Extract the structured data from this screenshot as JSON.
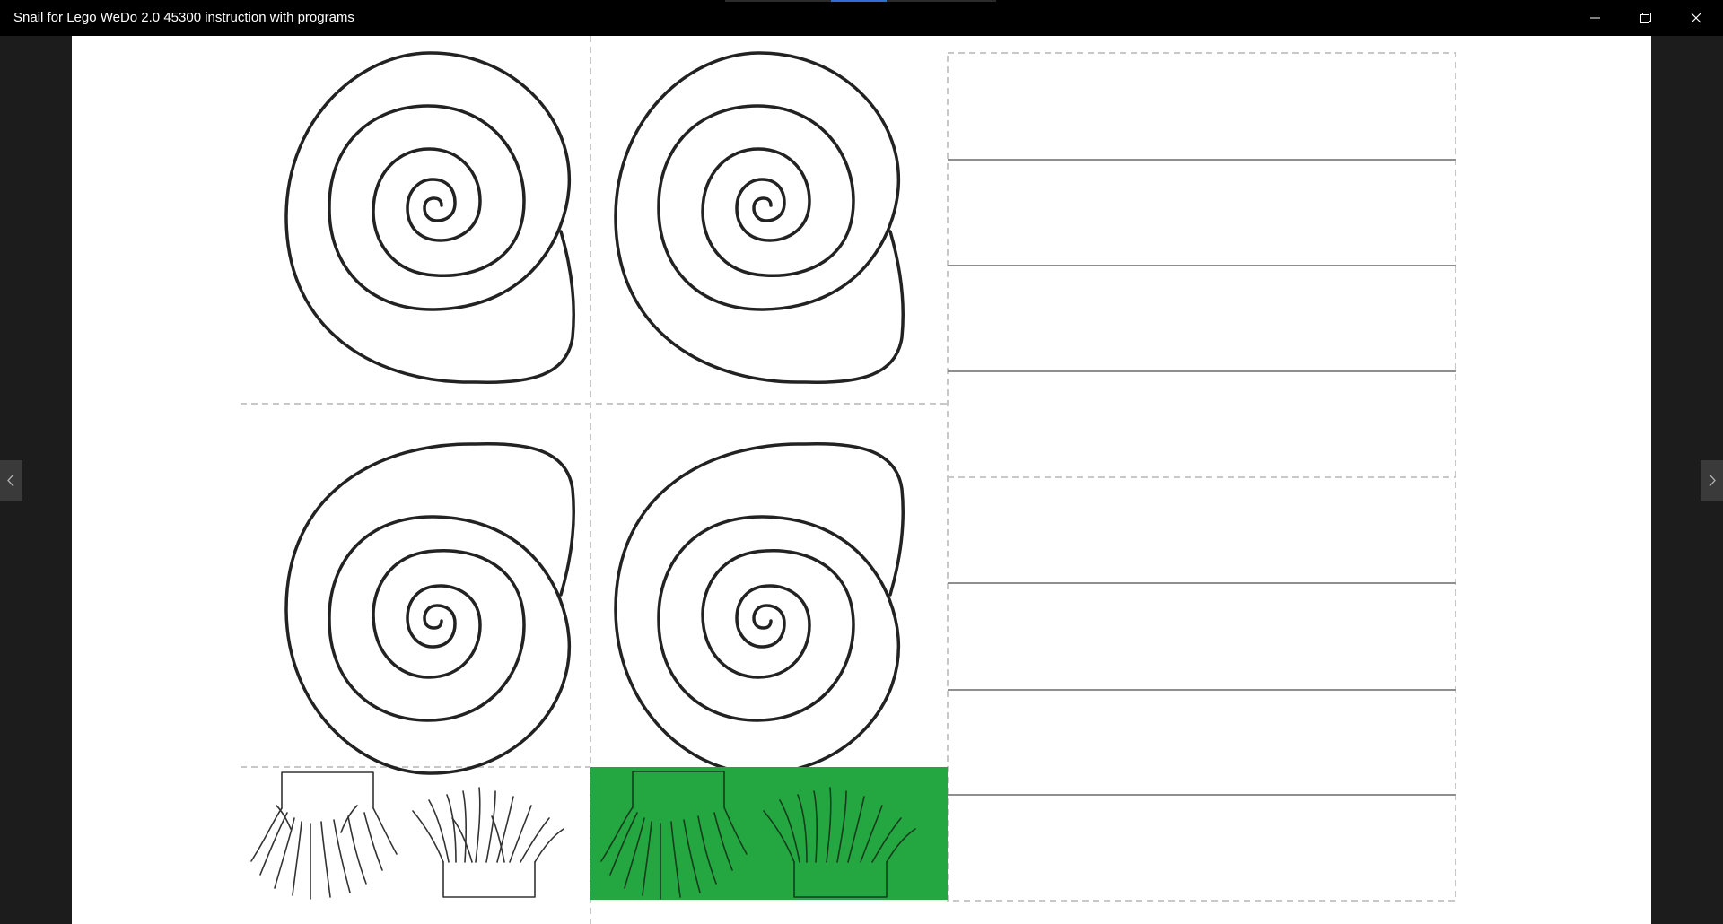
{
  "window": {
    "title": "Snail for Lego WeDo 2.0 45300 instruction with programs",
    "controls": {
      "minimize_icon": "minimize-icon",
      "restore_icon": "restore-icon",
      "close_icon": "close-icon"
    }
  },
  "viewer": {
    "prev_icon": "chevron-left-icon",
    "next_icon": "chevron-right-icon",
    "page": {
      "illustrations": [
        "snail-shell-top-left",
        "snail-shell-top-right",
        "snail-shell-bottom-left",
        "snail-shell-bottom-right",
        "grass-outline-pair",
        "grass-green-panel"
      ],
      "colors": {
        "grass_panel": "#24a641",
        "cut_line": "#c8c8c8",
        "drawing": "#222222"
      }
    }
  }
}
